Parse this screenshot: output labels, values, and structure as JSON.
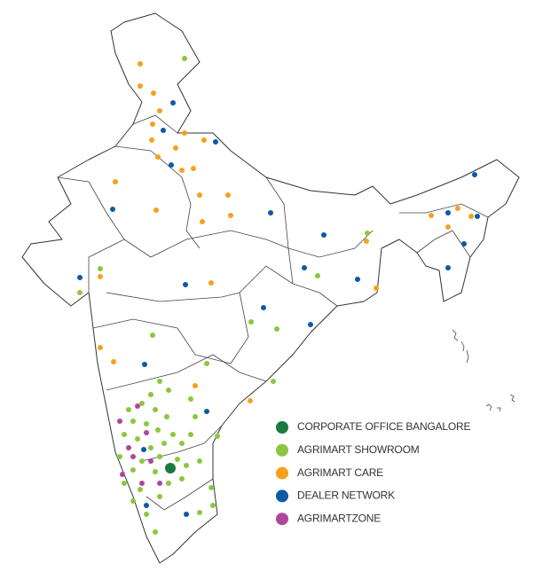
{
  "legend": [
    {
      "label": "CORPORATE OFFICE BANGALORE",
      "color": "#1b7a3e"
    },
    {
      "label": "AGRIMART SHOWROOM",
      "color": "#8cc63f"
    },
    {
      "label": "AGRIMART CARE",
      "color": "#f7a01e"
    },
    {
      "label": "DEALER NETWORK",
      "color": "#0b5aa5"
    },
    {
      "label": "AGRIMARTZONE",
      "color": "#b0459c"
    }
  ]
}
